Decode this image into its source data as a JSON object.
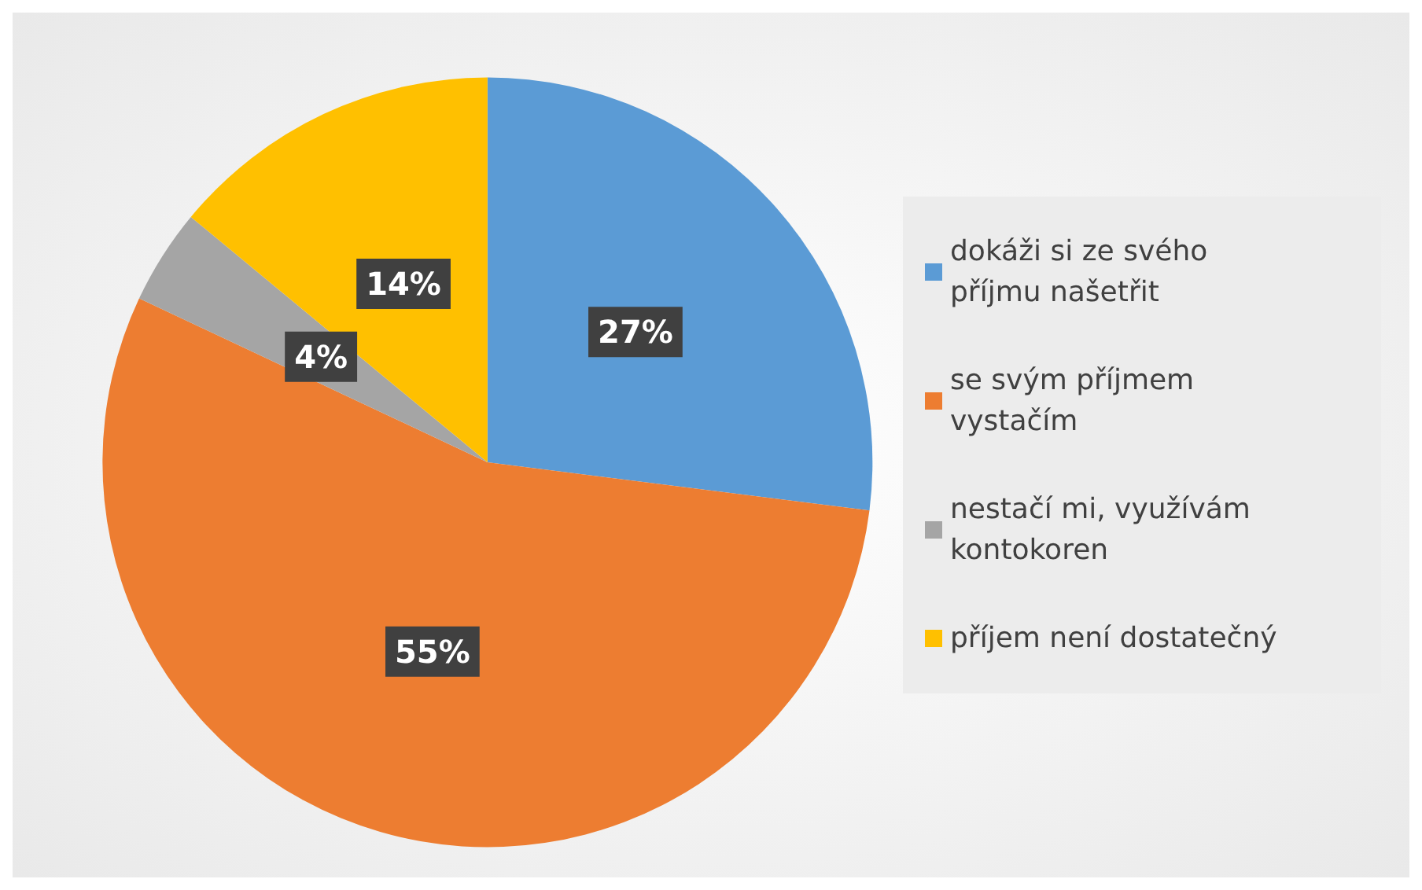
{
  "chart_data": {
    "type": "pie",
    "categories": [
      "dokáži si ze svého příjmu našetřit",
      "se svým příjmem vystačím",
      "nestačí mi, využívám kontokoren",
      "příjem není dostatečný"
    ],
    "values": [
      27,
      55,
      4,
      14
    ],
    "colors": [
      "#5b9bd5",
      "#ed7d31",
      "#a5a5a5",
      "#ffc000"
    ],
    "value_labels": [
      "27%",
      "55%",
      "4%",
      "14%"
    ],
    "legend": "right"
  }
}
